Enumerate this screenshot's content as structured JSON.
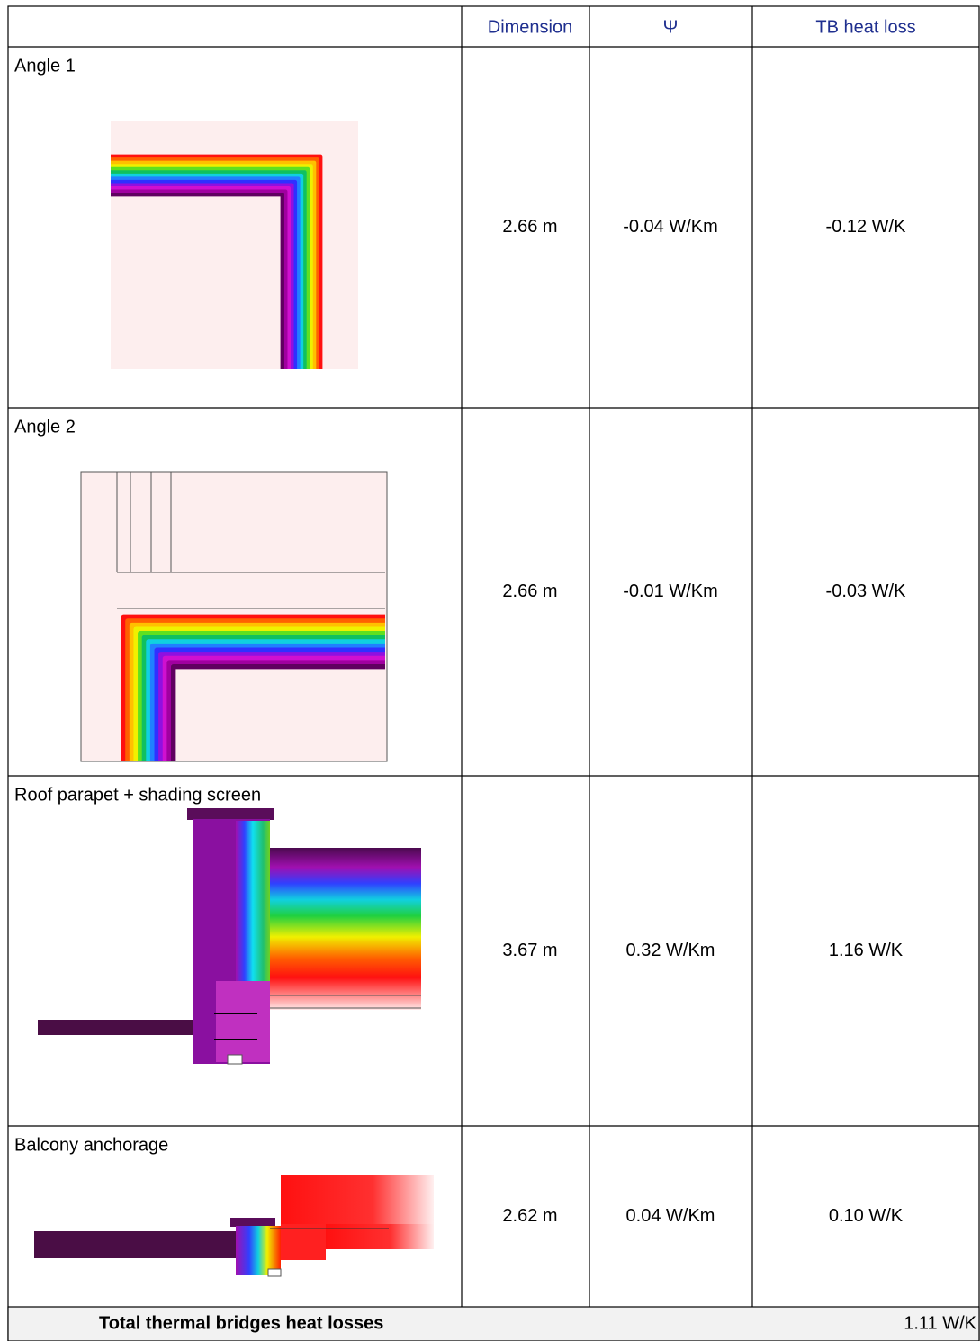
{
  "table": {
    "columns": [
      "Dimension",
      "Ψ",
      "TB heat loss"
    ],
    "rows": [
      {
        "label": "Angle 1",
        "dimension": "2.66 m",
        "psi": "-0.04 W/Km",
        "heat_loss": "-0.12 W/K"
      },
      {
        "label": "Angle 2",
        "dimension": "2.66 m",
        "psi": "-0.01 W/Km",
        "heat_loss": "-0.03 W/K"
      },
      {
        "label": "Roof parapet + shading screen",
        "dimension": "3.67 m",
        "psi": "0.32 W/Km",
        "heat_loss": "1.16 W/K"
      },
      {
        "label": "Balcony anchorage",
        "dimension": "2.62 m",
        "psi": "0.04 W/Km",
        "heat_loss": "0.10 W/K"
      }
    ],
    "total": {
      "label": "Total thermal bridges heat losses",
      "value": "1.11 W/K"
    }
  }
}
